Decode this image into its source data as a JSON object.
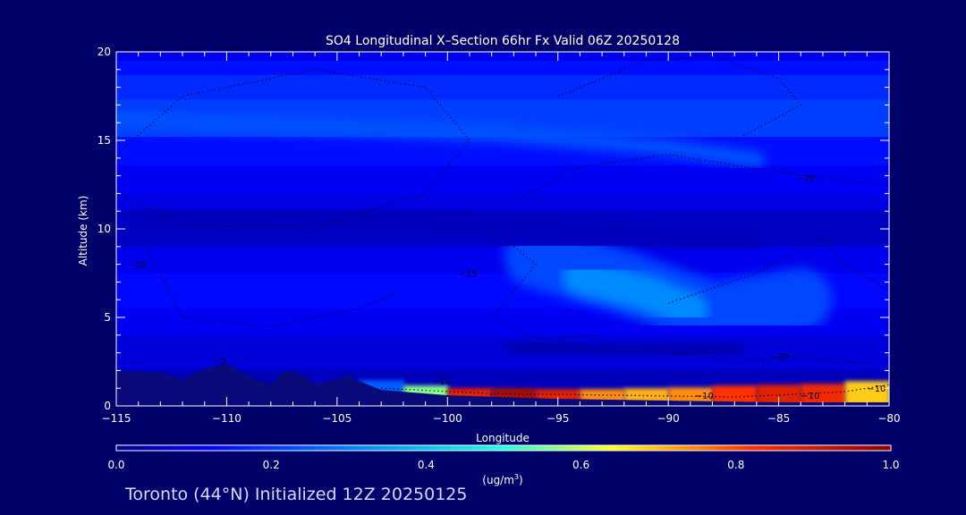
{
  "chart_data": {
    "type": "heatmap",
    "title": "SO4 Longitudinal X–Section 66hr  Fx Valid 06Z 20250128",
    "xlabel": "Longitude",
    "ylabel": "Altitude (km)",
    "xlim": [
      -115,
      -80
    ],
    "ylim": [
      0,
      20
    ],
    "x_ticks": [
      -115,
      -110,
      -105,
      -100,
      -95,
      -90,
      -85,
      -80
    ],
    "x_tick_labels": [
      "−115",
      "−110",
      "−105",
      "−100",
      "−95",
      "−90",
      "−85",
      "−80"
    ],
    "y_ticks": [
      0,
      5,
      10,
      15,
      20
    ],
    "y_tick_labels": [
      "0",
      "5",
      "10",
      "15",
      "20"
    ],
    "colorbar": {
      "min": 0.0,
      "max": 1.0,
      "ticks": [
        0.0,
        0.2,
        0.4,
        0.6,
        0.8,
        1.0
      ],
      "tick_labels": [
        "0.0",
        "0.2",
        "0.4",
        "0.6",
        "0.8",
        "1.0"
      ],
      "unit_base": "(ug/m",
      "unit_sup": "3",
      "unit_close": ")"
    },
    "concentration_bands": [
      {
        "y": [
          19.5,
          20.0
        ],
        "v": 0.1
      },
      {
        "y": [
          18.7,
          19.5
        ],
        "v": 0.14
      },
      {
        "y": [
          17.3,
          18.7
        ],
        "v": 0.18
      },
      {
        "y": [
          15.2,
          17.3
        ],
        "v": 0.21
      },
      {
        "y": [
          13.6,
          15.2
        ],
        "v": 0.14
      },
      {
        "y": [
          12.0,
          13.6
        ],
        "v": 0.11
      },
      {
        "y": [
          11.0,
          12.0
        ],
        "v": 0.09
      },
      {
        "y": [
          9.0,
          11.0
        ],
        "v": 0.06
      },
      {
        "y": [
          7.5,
          9.0
        ],
        "v": 0.1
      },
      {
        "y": [
          5.5,
          7.5
        ],
        "v": 0.13
      },
      {
        "y": [
          4.0,
          5.5
        ],
        "v": 0.11
      },
      {
        "y": [
          2.0,
          4.0
        ],
        "v": 0.08
      },
      {
        "y": [
          0.0,
          2.0
        ],
        "v": 0.05
      }
    ],
    "plumes": [
      {
        "name": "upper jet band",
        "v": 0.24,
        "x": [
          -115,
          -98,
          -90,
          -86
        ],
        "y": [
          16.2,
          15.4,
          14.6,
          13.9
        ]
      },
      {
        "name": "dark mid band",
        "v": 0.05,
        "x": [
          -114,
          -104,
          -97,
          -86
        ],
        "y": [
          10.8,
          10.6,
          10.2,
          9.2
        ]
      },
      {
        "name": "mid-level maximum outer",
        "v": 0.22,
        "x": [
          -96,
          -92,
          -88,
          -84
        ],
        "y": [
          8.4,
          7.0,
          5.2,
          6.0
        ]
      },
      {
        "name": "mid-level maximum inner",
        "v": 0.32,
        "x": [
          -94,
          -91,
          -89
        ],
        "y": [
          7.3,
          6.4,
          5.4
        ]
      },
      {
        "name": "mid-level core",
        "v": 0.38,
        "x": [
          -93,
          -91
        ],
        "y": [
          6.2,
          6.2
        ]
      },
      {
        "name": "low dark band",
        "v": 0.04,
        "x": [
          -97,
          -92,
          -87
        ],
        "y": [
          3.5,
          3.0,
          3.1
        ]
      }
    ],
    "boundary_layer": {
      "x": [
        -115,
        -112,
        -110,
        -108,
        -106,
        -104,
        -102,
        -100,
        -98,
        -96,
        -94,
        -92,
        -90,
        -88,
        -86,
        -84,
        -82,
        -80
      ],
      "v": [
        0.02,
        0.02,
        0.03,
        0.02,
        0.05,
        0.15,
        0.35,
        0.78,
        0.95,
        0.96,
        0.78,
        0.7,
        0.72,
        0.76,
        0.88,
        0.86,
        0.82,
        0.55
      ],
      "top_km": [
        0.6,
        0.8,
        1.6,
        1.2,
        1.3,
        1.6,
        1.3,
        1.0,
        1.0,
        1.0,
        0.9,
        1.0,
        1.0,
        1.1,
        1.2,
        1.2,
        1.3,
        1.5
      ]
    },
    "terrain": {
      "x": [
        -115,
        -113,
        -112,
        -111,
        -110,
        -109,
        -108,
        -107.5,
        -107,
        -106,
        -105,
        -104.5,
        -104,
        -103,
        -102,
        -100,
        -95,
        -90,
        -85,
        -80
      ],
      "y": [
        2.0,
        1.9,
        1.5,
        2.1,
        2.4,
        1.7,
        1.2,
        1.9,
        2.0,
        1.3,
        1.5,
        1.8,
        1.4,
        0.9,
        0.8,
        0.6,
        0.4,
        0.3,
        0.2,
        0.2
      ]
    },
    "temperature_contour_labels": [
      {
        "text": "−20",
        "x": -84.2,
        "y": 12.7
      },
      {
        "text": "−20",
        "x": -85.4,
        "y": 2.6
      },
      {
        "text": "−10",
        "x": -100.7,
        "y": 1.2
      },
      {
        "text": "−10",
        "x": -88.8,
        "y": 0.4
      },
      {
        "text": "−10",
        "x": -84.0,
        "y": 0.4
      },
      {
        "text": "−10",
        "x": -81.0,
        "y": 0.8
      },
      {
        "text": "−5",
        "x": -110.6,
        "y": 2.4
      },
      {
        "text": "−10",
        "x": -114.5,
        "y": 7.8
      },
      {
        "text": "−15",
        "x": -99.5,
        "y": 7.3
      }
    ]
  },
  "footer": {
    "text": "Toronto (44°N) Initialized 12Z 20250125"
  }
}
